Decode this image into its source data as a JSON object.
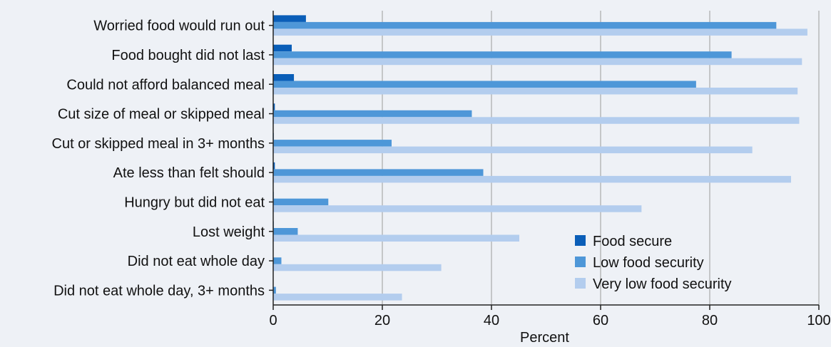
{
  "chart_data": {
    "type": "bar",
    "orientation": "horizontal",
    "title": "",
    "xlabel": "Percent",
    "ylabel": "",
    "xlim": [
      0,
      100
    ],
    "xticks": [
      "0",
      "20",
      "40",
      "60",
      "80",
      "100"
    ],
    "grid": true,
    "legend_position": "bottom-right",
    "categories": [
      "Worried food would run out",
      "Food bought did not last",
      "Could not afford balanced meal",
      "Cut size of meal or skipped meal",
      "Cut or skipped meal in 3+ months",
      "Ate less than felt should",
      "Hungry but did not eat",
      "Lost weight",
      "Did not eat whole day",
      "Did not eat whole day, 3+ months"
    ],
    "series": [
      {
        "name": "Food secure",
        "color": "#0a5eb8",
        "values": [
          6.0,
          3.4,
          3.8,
          0.3,
          0.1,
          0.3,
          0.1,
          0.1,
          0.0,
          0.0
        ]
      },
      {
        "name": "Low food security",
        "color": "#4e97d8",
        "values": [
          92.2,
          84.0,
          77.5,
          36.4,
          21.7,
          38.5,
          10.1,
          4.5,
          1.5,
          0.5
        ]
      },
      {
        "name": "Very low food security",
        "color": "#b3cdee",
        "values": [
          97.9,
          96.9,
          96.1,
          96.4,
          87.8,
          94.9,
          67.5,
          45.1,
          30.8,
          23.6
        ]
      }
    ]
  }
}
